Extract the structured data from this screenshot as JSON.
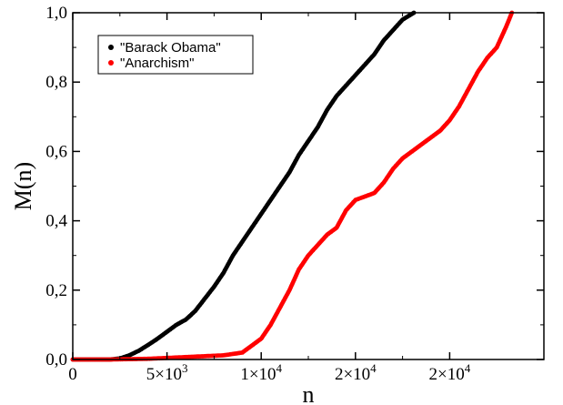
{
  "chart_data": {
    "type": "scatter",
    "title": "",
    "xlabel": "n",
    "ylabel": "M(n)",
    "xlim": [
      0,
      25000
    ],
    "ylim": [
      0,
      1
    ],
    "grid": false,
    "legend_position": "top-left",
    "x_ticks": [
      {
        "value": 0,
        "label": "0",
        "sup": ""
      },
      {
        "value": 5000,
        "label": "5×10",
        "sup": "3"
      },
      {
        "value": 10000,
        "label": "1×10",
        "sup": "4"
      },
      {
        "value": 15000,
        "label": "2×10",
        "sup": "4"
      },
      {
        "value": 20000,
        "label": "2×10",
        "sup": "4"
      }
    ],
    "y_ticks": [
      {
        "value": 0.0,
        "label": "0,0"
      },
      {
        "value": 0.2,
        "label": "0,2"
      },
      {
        "value": 0.4,
        "label": "0,4"
      },
      {
        "value": 0.6,
        "label": "0,6"
      },
      {
        "value": 0.8,
        "label": "0,8"
      },
      {
        "value": 1.0,
        "label": "1,0"
      }
    ],
    "series": [
      {
        "name": "\"Barack Obama\"",
        "color": "#000000",
        "points": [
          [
            0,
            0.0
          ],
          [
            1000,
            0.0
          ],
          [
            2000,
            0.0
          ],
          [
            2500,
            0.003
          ],
          [
            3000,
            0.012
          ],
          [
            3500,
            0.025
          ],
          [
            4000,
            0.042
          ],
          [
            4500,
            0.06
          ],
          [
            5000,
            0.08
          ],
          [
            5500,
            0.1
          ],
          [
            6000,
            0.115
          ],
          [
            6500,
            0.14
          ],
          [
            7000,
            0.175
          ],
          [
            7500,
            0.21
          ],
          [
            8000,
            0.25
          ],
          [
            8500,
            0.3
          ],
          [
            9000,
            0.34
          ],
          [
            9500,
            0.38
          ],
          [
            10000,
            0.42
          ],
          [
            10500,
            0.46
          ],
          [
            11000,
            0.5
          ],
          [
            11500,
            0.54
          ],
          [
            12000,
            0.59
          ],
          [
            12500,
            0.63
          ],
          [
            13000,
            0.67
          ],
          [
            13500,
            0.72
          ],
          [
            14000,
            0.76
          ],
          [
            14500,
            0.79
          ],
          [
            15000,
            0.82
          ],
          [
            15500,
            0.85
          ],
          [
            16000,
            0.88
          ],
          [
            16500,
            0.92
          ],
          [
            17000,
            0.95
          ],
          [
            17500,
            0.98
          ],
          [
            18100,
            1.0
          ]
        ]
      },
      {
        "name": "\"Anarchism\"",
        "color": "#ff0000",
        "points": [
          [
            0,
            0.0
          ],
          [
            2000,
            0.0
          ],
          [
            4000,
            0.002
          ],
          [
            6000,
            0.007
          ],
          [
            8000,
            0.012
          ],
          [
            9000,
            0.02
          ],
          [
            9500,
            0.04
          ],
          [
            10000,
            0.06
          ],
          [
            10500,
            0.1
          ],
          [
            11000,
            0.15
          ],
          [
            11500,
            0.2
          ],
          [
            12000,
            0.26
          ],
          [
            12500,
            0.3
          ],
          [
            13000,
            0.33
          ],
          [
            13500,
            0.36
          ],
          [
            14000,
            0.38
          ],
          [
            14500,
            0.43
          ],
          [
            15000,
            0.46
          ],
          [
            15500,
            0.47
          ],
          [
            16000,
            0.48
          ],
          [
            16500,
            0.51
          ],
          [
            17000,
            0.55
          ],
          [
            17500,
            0.58
          ],
          [
            18000,
            0.6
          ],
          [
            18500,
            0.62
          ],
          [
            19000,
            0.64
          ],
          [
            19500,
            0.66
          ],
          [
            20000,
            0.69
          ],
          [
            20500,
            0.73
          ],
          [
            21000,
            0.78
          ],
          [
            21500,
            0.83
          ],
          [
            22000,
            0.87
          ],
          [
            22500,
            0.9
          ],
          [
            23000,
            0.96
          ],
          [
            23300,
            1.0
          ]
        ]
      }
    ]
  }
}
